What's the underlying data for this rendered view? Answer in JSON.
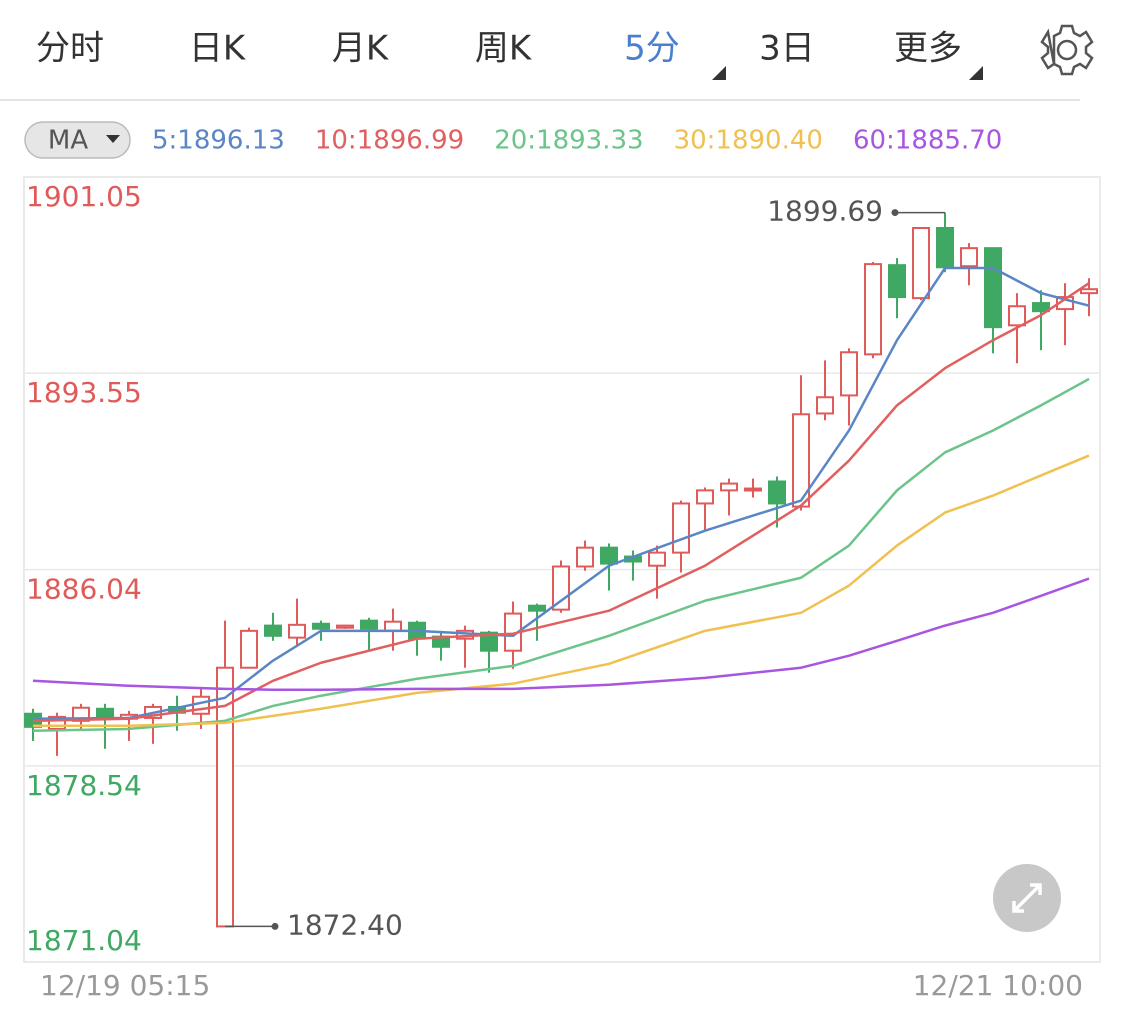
{
  "tabs": [
    "分时",
    "日K",
    "月K",
    "周K",
    "5分",
    "3日",
    "更多"
  ],
  "active_tab": 4,
  "ma_selector": "MA",
  "chart_data": {
    "type": "candlestick",
    "categories": [
      "12/19 05:15",
      null,
      null,
      null,
      null,
      null,
      null,
      null,
      null,
      null,
      null,
      null,
      null,
      null,
      null,
      null,
      null,
      null,
      null,
      null,
      null,
      null,
      null,
      null,
      null,
      null,
      null,
      null,
      null,
      null,
      null,
      null,
      null,
      null,
      null,
      null,
      null,
      null,
      null,
      null,
      null,
      null,
      null,
      null,
      "12/21 10:00"
    ],
    "open": [
      1880.53,
      1879.95,
      1880.26,
      1880.72,
      1880.34,
      1880.37,
      1880.79,
      1880.53,
      1872.4,
      1882.29,
      1883.9,
      1883.44,
      1883.97,
      1883.82,
      1884.09,
      1883.7,
      1884.01,
      1883.48,
      1883.4,
      1883.63,
      1882.94,
      1884.66,
      1884.51,
      1886.16,
      1886.88,
      1886.54,
      1886.19,
      1886.69,
      1888.57,
      1889.07,
      1889.07,
      1889.41,
      1888.45,
      1892.01,
      1892.7,
      1894.27,
      1897.68,
      1896.42,
      1899.1,
      1897.64,
      1898.33,
      1895.38,
      1896.23,
      1896.0,
      1896.61
    ],
    "high": [
      1880.72,
      1880.57,
      1880.91,
      1880.91,
      1880.64,
      1880.91,
      1881.22,
      1881.48,
      1884.09,
      1883.82,
      1884.39,
      1884.93,
      1884.09,
      1883.93,
      1884.2,
      1884.55,
      1884.09,
      1883.7,
      1883.9,
      1883.7,
      1884.82,
      1884.74,
      1886.39,
      1887.15,
      1887.04,
      1886.77,
      1886.96,
      1888.68,
      1889.18,
      1889.52,
      1889.52,
      1889.6,
      1893.47,
      1894.04,
      1894.5,
      1897.8,
      1897.95,
      1899.1,
      1899.69,
      1898.52,
      1898.33,
      1896.61,
      1896.72,
      1896.99,
      1897.18
    ],
    "low": [
      1879.49,
      1878.92,
      1879.95,
      1879.19,
      1879.49,
      1879.38,
      1879.88,
      1879.95,
      1872.4,
      1882.29,
      1883.32,
      1883.13,
      1883.32,
      1883.78,
      1882.94,
      1882.94,
      1882.75,
      1882.56,
      1882.29,
      1882.1,
      1882.25,
      1883.32,
      1884.39,
      1886.0,
      1885.24,
      1885.62,
      1884.93,
      1885.93,
      1887.53,
      1888.11,
      1888.8,
      1887.65,
      1888.3,
      1891.75,
      1891.55,
      1894.12,
      1895.65,
      1896.34,
      1897.41,
      1896.91,
      1894.31,
      1893.93,
      1894.43,
      1894.62,
      1895.73
    ],
    "close": [
      1880.03,
      1880.41,
      1880.76,
      1880.41,
      1880.49,
      1880.79,
      1880.57,
      1881.18,
      1882.29,
      1883.7,
      1883.51,
      1883.93,
      1883.78,
      1883.9,
      1883.78,
      1884.05,
      1883.4,
      1883.09,
      1883.7,
      1882.94,
      1884.36,
      1884.47,
      1886.16,
      1886.88,
      1886.27,
      1886.35,
      1886.69,
      1888.57,
      1889.07,
      1889.33,
      1889.14,
      1888.57,
      1891.98,
      1892.63,
      1894.35,
      1897.72,
      1896.46,
      1899.1,
      1897.6,
      1898.33,
      1895.31,
      1896.11,
      1895.92,
      1896.46,
      1896.76
    ],
    "up_color": "#e05a5a",
    "down_color": "#3fa862",
    "ma_series": [
      {
        "name": "5:1896.13",
        "color": "#5b86c5",
        "x": [
          0,
          4,
          8,
          10,
          12,
          16,
          20,
          24,
          28,
          32,
          34,
          36,
          38,
          40,
          42,
          44
        ],
        "values": [
          1880.34,
          1880.37,
          1881.14,
          1882.56,
          1883.7,
          1883.7,
          1883.51,
          1886.19,
          1887.53,
          1888.68,
          1891.36,
          1894.81,
          1897.57,
          1897.57,
          1896.61,
          1896.13
        ]
      },
      {
        "name": "10:1896.99",
        "color": "#e06060",
        "x": [
          0,
          4,
          8,
          10,
          12,
          16,
          20,
          24,
          28,
          32,
          34,
          36,
          38,
          40,
          42,
          44
        ],
        "values": [
          1880.26,
          1880.34,
          1880.83,
          1881.79,
          1882.48,
          1883.4,
          1883.59,
          1884.47,
          1886.19,
          1888.49,
          1890.21,
          1892.32,
          1893.74,
          1894.81,
          1895.77,
          1896.99
        ]
      },
      {
        "name": "20:1893.33",
        "color": "#6cc48a",
        "x": [
          0,
          4,
          8,
          10,
          12,
          16,
          20,
          24,
          28,
          32,
          34,
          36,
          38,
          40,
          42,
          44
        ],
        "values": [
          1879.88,
          1879.95,
          1880.26,
          1880.83,
          1881.22,
          1881.87,
          1882.36,
          1883.51,
          1884.85,
          1885.73,
          1886.96,
          1889.07,
          1890.52,
          1891.36,
          1892.32,
          1893.33
        ]
      },
      {
        "name": "30:1890.40",
        "color": "#f0c050",
        "x": [
          0,
          4,
          8,
          10,
          12,
          16,
          20,
          24,
          28,
          32,
          34,
          36,
          38,
          40,
          42,
          44
        ],
        "values": [
          1880.07,
          1880.07,
          1880.18,
          1880.45,
          1880.72,
          1881.33,
          1881.68,
          1882.44,
          1883.7,
          1884.39,
          1885.43,
          1886.96,
          1888.22,
          1888.87,
          1889.64,
          1890.4
        ]
      },
      {
        "name": "60:1885.70",
        "color": "#a855e0",
        "x": [
          0,
          4,
          8,
          10,
          12,
          16,
          20,
          24,
          28,
          32,
          34,
          36,
          38,
          40,
          42,
          44
        ],
        "values": [
          1881.79,
          1881.6,
          1881.48,
          1881.45,
          1881.45,
          1881.48,
          1881.48,
          1881.64,
          1881.9,
          1882.29,
          1882.75,
          1883.32,
          1883.9,
          1884.39,
          1885.04,
          1885.7
        ]
      }
    ],
    "ylim": [
      1871.04,
      1901.05
    ],
    "yticks": [
      {
        "value": 1901.05,
        "label": "1901.05"
      },
      {
        "value": 1893.55,
        "label": "1893.55"
      },
      {
        "value": 1886.04,
        "label": "1886.04"
      },
      {
        "value": 1878.54,
        "label": "1878.54"
      },
      {
        "value": 1871.04,
        "label": "1871.04"
      }
    ],
    "ytick_colors": [
      "#e05a5a",
      "#e05a5a",
      "#e05a5a",
      "#3fa862",
      "#3fa862"
    ],
    "grid": true,
    "annotations": [
      {
        "text": "1899.69",
        "value": 1899.69,
        "index": 38
      },
      {
        "text": "1872.40",
        "value": 1872.4,
        "index": 8
      }
    ]
  }
}
